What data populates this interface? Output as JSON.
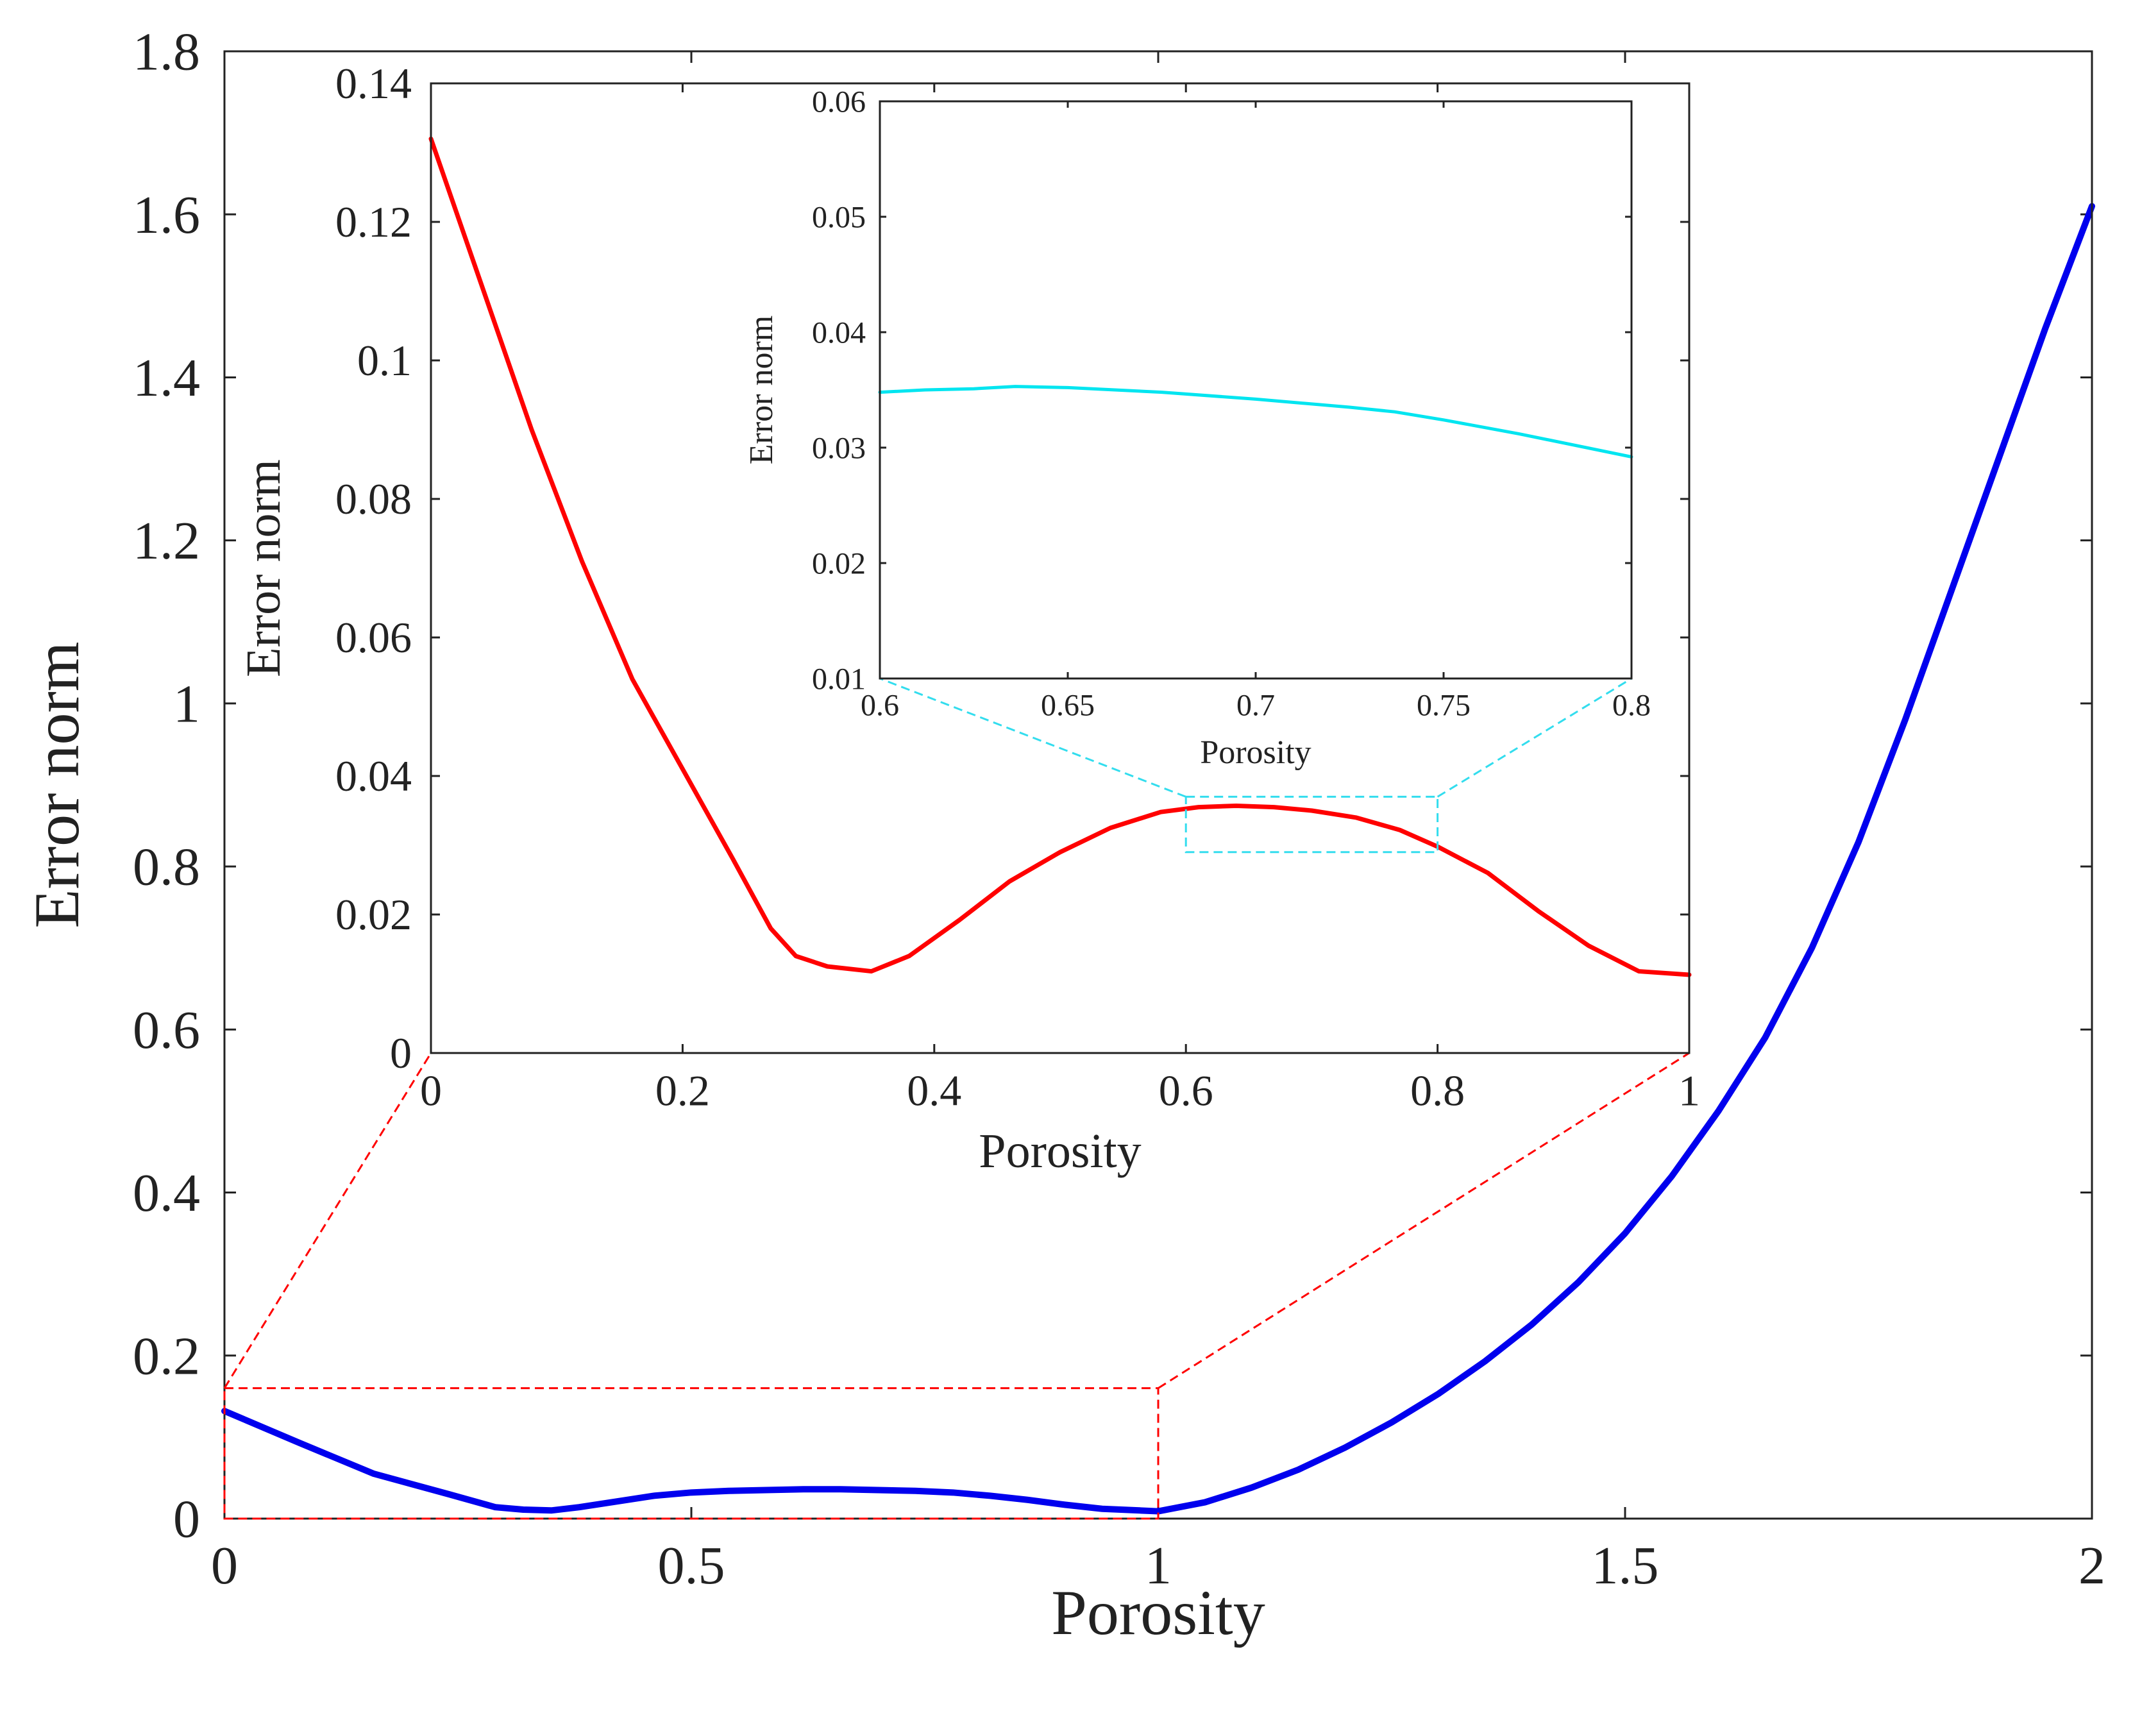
{
  "chart_data": [
    {
      "panel": "main",
      "type": "line",
      "xlabel": "Porosity",
      "ylabel": "Error norm",
      "xlim": [
        0,
        2
      ],
      "ylim": [
        0,
        1.8
      ],
      "xticks": [
        0,
        0.5,
        1,
        1.5,
        2
      ],
      "xtick_labels": [
        "0",
        "0.5",
        "1",
        "1.5",
        "2"
      ],
      "yticks": [
        0,
        0.2,
        0.4,
        0.6,
        0.8,
        1,
        1.2,
        1.4,
        1.6,
        1.8
      ],
      "ytick_labels": [
        "0",
        "0.2",
        "0.4",
        "0.6",
        "0.8",
        "1",
        "1.2",
        "1.4",
        "1.6",
        "1.8"
      ],
      "grid": false,
      "series": [
        {
          "color": "#0000ee",
          "x": [
            0,
            0.08,
            0.16,
            0.24,
            0.29,
            0.32,
            0.35,
            0.38,
            0.42,
            0.46,
            0.5,
            0.54,
            0.58,
            0.62,
            0.66,
            0.7,
            0.74,
            0.78,
            0.82,
            0.86,
            0.9,
            0.94,
            0.98,
            1.0,
            1.05,
            1.1,
            1.15,
            1.2,
            1.25,
            1.3,
            1.35,
            1.4,
            1.45,
            1.5,
            1.55,
            1.6,
            1.65,
            1.7,
            1.75,
            1.8,
            1.85,
            1.9,
            1.95,
            2.0
          ],
          "y": [
            0.132,
            0.093,
            0.055,
            0.03,
            0.014,
            0.011,
            0.01,
            0.014,
            0.021,
            0.028,
            0.032,
            0.034,
            0.035,
            0.036,
            0.036,
            0.035,
            0.034,
            0.032,
            0.028,
            0.023,
            0.017,
            0.012,
            0.01,
            0.009,
            0.02,
            0.038,
            0.06,
            0.087,
            0.118,
            0.153,
            0.193,
            0.238,
            0.29,
            0.35,
            0.42,
            0.5,
            0.59,
            0.7,
            0.83,
            0.98,
            1.14,
            1.3,
            1.46,
            1.61
          ]
        }
      ],
      "annotations": [
        {
          "kind": "zoom-box",
          "color": "#ff0000",
          "x_range": [
            0,
            1
          ],
          "y_range": [
            0,
            0.16
          ]
        }
      ]
    },
    {
      "panel": "inset",
      "type": "line",
      "xlabel": "Porosity",
      "ylabel": "Error norm",
      "xlim": [
        0,
        1
      ],
      "ylim": [
        0,
        0.14
      ],
      "xticks": [
        0,
        0.2,
        0.4,
        0.6,
        0.8,
        1
      ],
      "xtick_labels": [
        "0",
        "0.2",
        "0.4",
        "0.6",
        "0.8",
        "1"
      ],
      "yticks": [
        0,
        0.02,
        0.04,
        0.06,
        0.08,
        0.1,
        0.12,
        0.14
      ],
      "ytick_labels": [
        "0",
        "0.02",
        "0.04",
        "0.06",
        "0.08",
        "0.1",
        "0.12",
        "0.14"
      ],
      "grid": false,
      "series": [
        {
          "color": "#ff0000",
          "x": [
            0,
            0.04,
            0.08,
            0.12,
            0.16,
            0.2,
            0.24,
            0.27,
            0.29,
            0.315,
            0.35,
            0.38,
            0.42,
            0.46,
            0.5,
            0.54,
            0.58,
            0.61,
            0.64,
            0.67,
            0.7,
            0.735,
            0.77,
            0.8,
            0.84,
            0.88,
            0.92,
            0.96,
            1.0
          ],
          "y": [
            0.132,
            0.111,
            0.09,
            0.071,
            0.054,
            0.041,
            0.028,
            0.018,
            0.014,
            0.0125,
            0.0118,
            0.014,
            0.0192,
            0.0248,
            0.029,
            0.0325,
            0.0348,
            0.0355,
            0.0357,
            0.0355,
            0.035,
            0.034,
            0.0322,
            0.0298,
            0.026,
            0.0205,
            0.0155,
            0.0118,
            0.0113
          ]
        }
      ],
      "annotations": [
        {
          "kind": "zoom-box",
          "color": "#33ddee",
          "x_range": [
            0.6,
            0.8
          ],
          "y_range": [
            0.029,
            0.037
          ]
        }
      ]
    },
    {
      "panel": "sub-inset",
      "type": "line",
      "xlabel": "Porosity",
      "ylabel": "Error norm",
      "xlim": [
        0.6,
        0.8
      ],
      "ylim": [
        0.01,
        0.06
      ],
      "xticks": [
        0.6,
        0.65,
        0.7,
        0.75,
        0.8
      ],
      "xtick_labels": [
        "0.6",
        "0.65",
        "0.7",
        "0.75",
        "0.8"
      ],
      "yticks": [
        0.01,
        0.02,
        0.03,
        0.04,
        0.05,
        0.06
      ],
      "ytick_labels": [
        "0.01",
        "0.02",
        "0.03",
        "0.04",
        "0.05",
        "0.06"
      ],
      "grid": false,
      "series": [
        {
          "color": "#00e5f0",
          "x": [
            0.6,
            0.612,
            0.625,
            0.636,
            0.65,
            0.675,
            0.7,
            0.725,
            0.737,
            0.75,
            0.77,
            0.8
          ],
          "y": [
            0.0348,
            0.035,
            0.0351,
            0.0353,
            0.0352,
            0.0348,
            0.0342,
            0.0335,
            0.0331,
            0.0324,
            0.0312,
            0.0292
          ]
        }
      ]
    }
  ]
}
